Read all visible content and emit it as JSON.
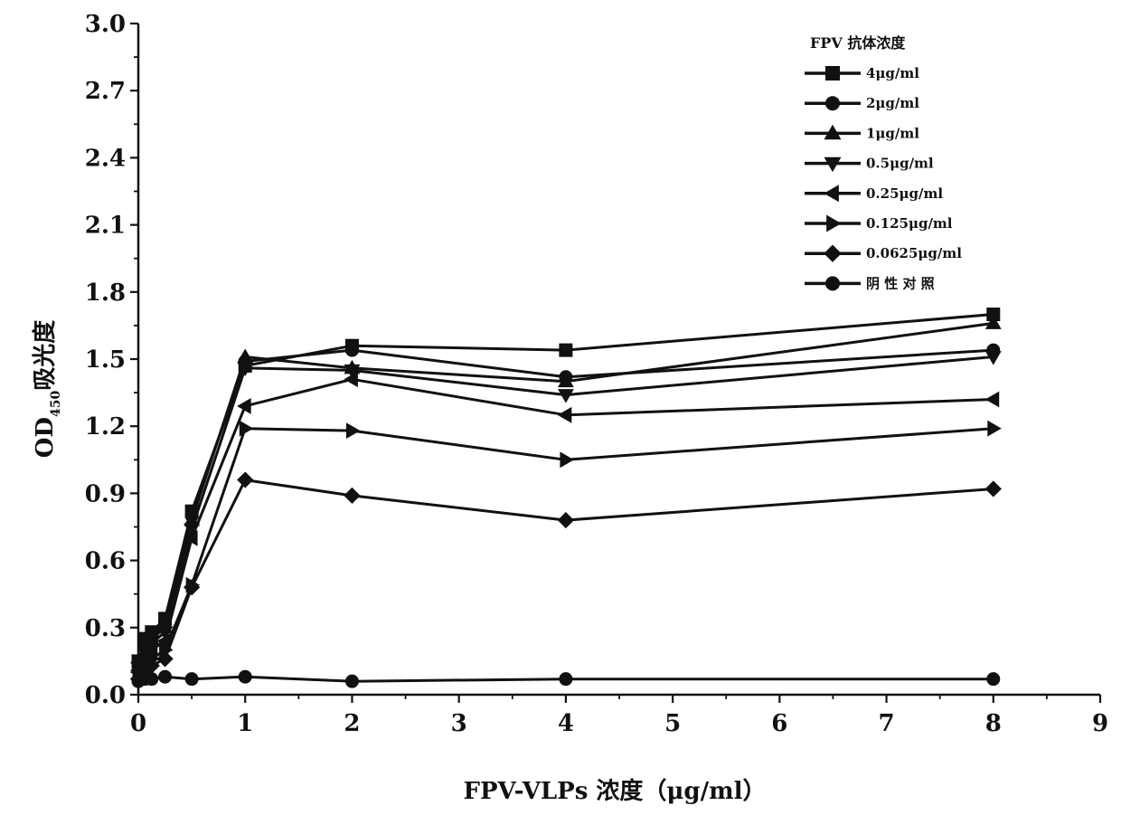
{
  "chart_data": {
    "type": "line",
    "title": "",
    "xlabel": "FPV-VLPs 浓度（μg/ml）",
    "ylabel_main": "OD",
    "ylabel_sub": "450",
    "ylabel_suffix": "吸光度",
    "xlim": [
      0,
      9
    ],
    "ylim": [
      0,
      3.0
    ],
    "x_ticks": [
      "0",
      "1",
      "2",
      "3",
      "4",
      "5",
      "6",
      "7",
      "8",
      "9"
    ],
    "y_ticks": [
      "0.0",
      "0.3",
      "0.6",
      "0.9",
      "1.2",
      "1.5",
      "1.8",
      "2.1",
      "2.4",
      "2.7",
      "3.0"
    ],
    "grid": false,
    "legend_title": "FPV 抗体浓度",
    "legend_position": "top-right",
    "x": [
      0,
      0.0625,
      0.125,
      0.25,
      0.5,
      1,
      2,
      4,
      8
    ],
    "series": [
      {
        "name": "4μg/ml",
        "marker": "square",
        "values": [
          0.15,
          0.25,
          0.28,
          0.34,
          0.82,
          1.47,
          1.56,
          1.54,
          1.7
        ]
      },
      {
        "name": "2μg/ml",
        "marker": "circle",
        "values": [
          0.14,
          0.23,
          0.26,
          0.32,
          0.8,
          1.49,
          1.54,
          1.42,
          1.54
        ]
      },
      {
        "name": "1μg/ml",
        "marker": "triangle-up",
        "values": [
          0.13,
          0.22,
          0.25,
          0.3,
          0.78,
          1.51,
          1.46,
          1.4,
          1.66
        ]
      },
      {
        "name": "0.5μg/ml",
        "marker": "triangle-down",
        "values": [
          0.12,
          0.2,
          0.23,
          0.28,
          0.74,
          1.46,
          1.45,
          1.34,
          1.51
        ]
      },
      {
        "name": "0.25μg/ml",
        "marker": "triangle-left",
        "values": [
          0.1,
          0.17,
          0.2,
          0.24,
          0.7,
          1.29,
          1.41,
          1.25,
          1.32
        ]
      },
      {
        "name": "0.125μg/ml",
        "marker": "triangle-right",
        "values": [
          0.08,
          0.14,
          0.16,
          0.2,
          0.49,
          1.19,
          1.18,
          1.05,
          1.19
        ]
      },
      {
        "name": "0.0625μg/ml",
        "marker": "diamond",
        "values": [
          0.07,
          0.11,
          0.13,
          0.16,
          0.48,
          0.96,
          0.89,
          0.78,
          0.92
        ]
      },
      {
        "name": "阴 性 对 照",
        "marker": "circle",
        "values": [
          0.06,
          0.07,
          0.07,
          0.08,
          0.07,
          0.08,
          0.06,
          0.07,
          0.07
        ]
      }
    ],
    "colors": {
      "line": "#111111",
      "background": "#ffffff"
    }
  }
}
